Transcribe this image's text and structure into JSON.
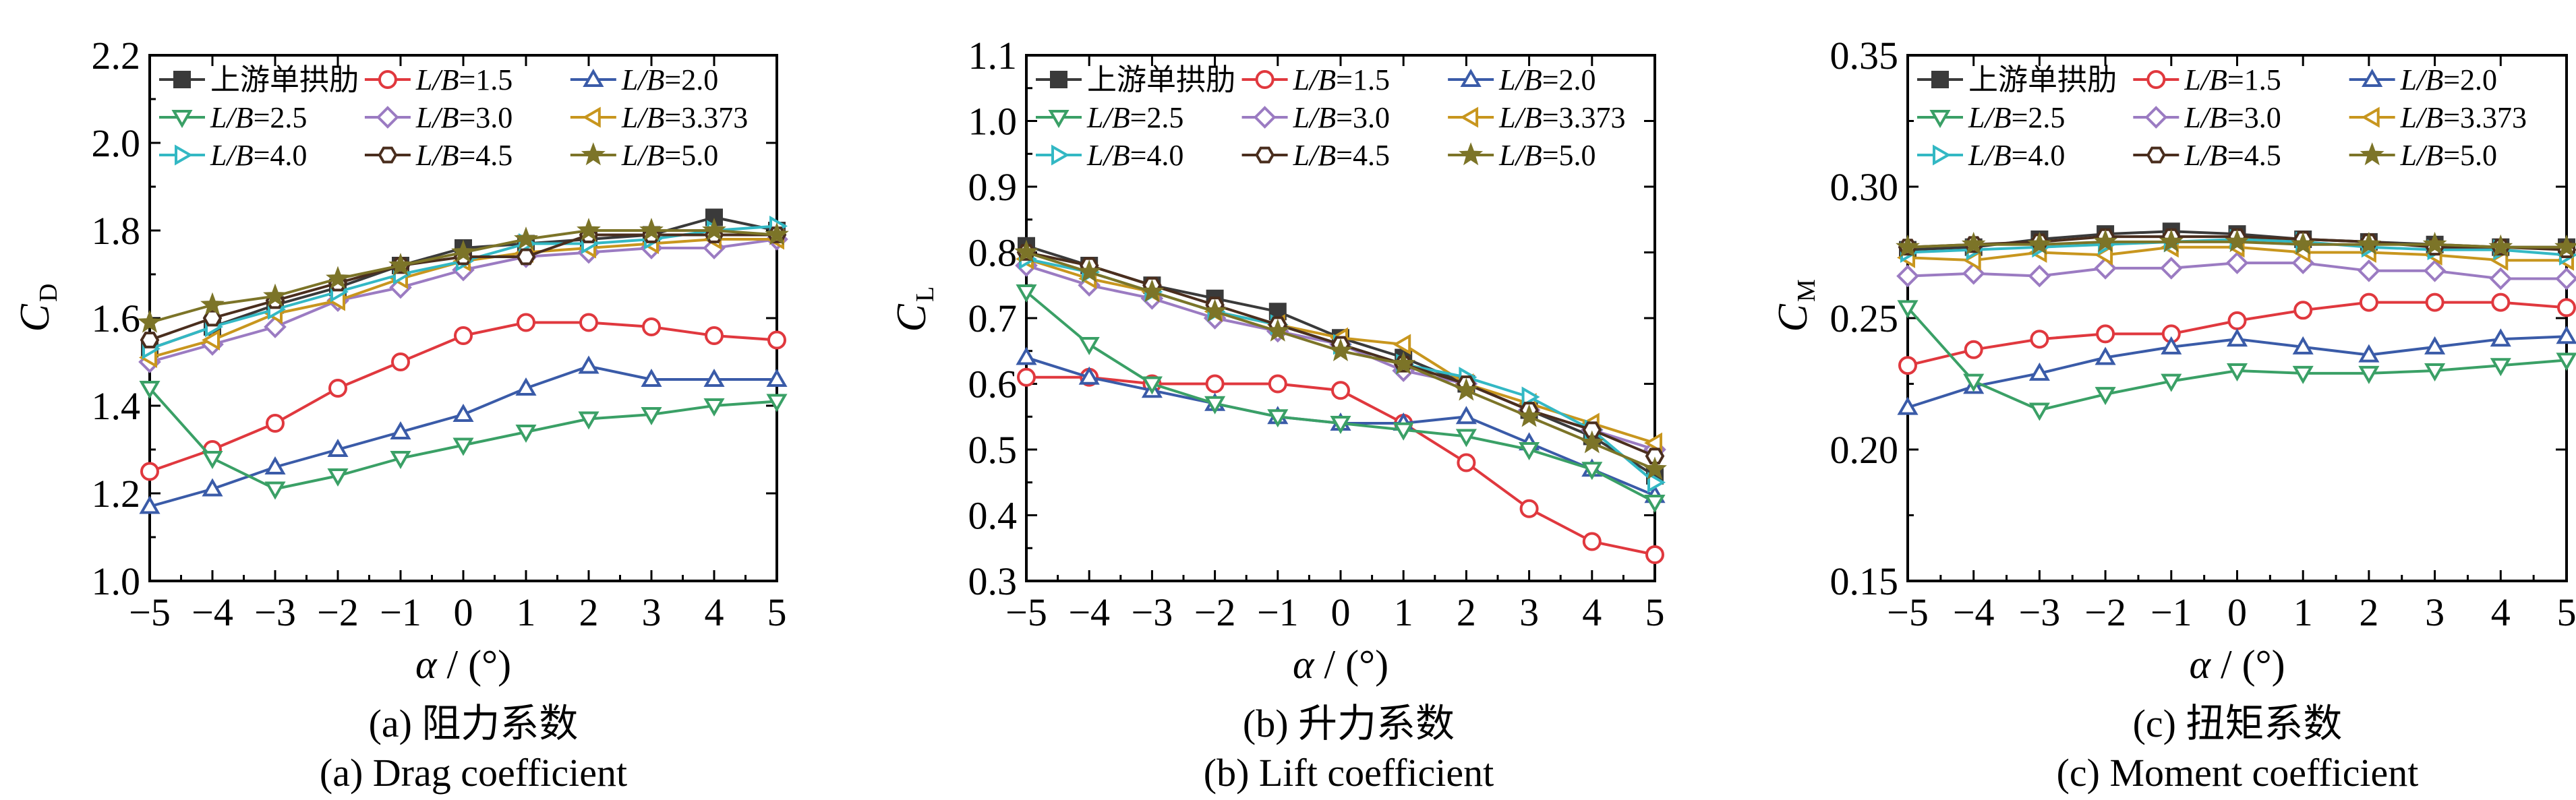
{
  "legend_labels": [
    "上游单拱肋",
    "L/B=1.5",
    "L/B=2.0",
    "L/B=2.5",
    "L/B=3.0",
    "L/B=3.373",
    "L/B=4.0",
    "L/B=4.5",
    "L/B=5.0"
  ],
  "series_style": [
    {
      "color": "#3a3a3a",
      "marker": "square-filled"
    },
    {
      "color": "#e0383e",
      "marker": "circle"
    },
    {
      "color": "#3a5ba8",
      "marker": "triangle-up"
    },
    {
      "color": "#3aa066",
      "marker": "triangle-down"
    },
    {
      "color": "#9b7bc2",
      "marker": "diamond"
    },
    {
      "color": "#c8961e",
      "marker": "triangle-left"
    },
    {
      "color": "#33b8c4",
      "marker": "triangle-right"
    },
    {
      "color": "#4a2e1e",
      "marker": "hexagon"
    },
    {
      "color": "#7c7428",
      "marker": "star"
    }
  ],
  "chart_data": [
    {
      "type": "line",
      "caption_cn": "(a)  阻力系数",
      "caption_en": "(a)  Drag coefficient",
      "xlabel": "α / (°)",
      "ylabel": "C",
      "ylabel_sub": "D",
      "xlim": [
        -5,
        5
      ],
      "ylim": [
        1.0,
        2.2
      ],
      "yticks": [
        "1.0",
        "1.2",
        "1.4",
        "1.6",
        "1.8",
        "2.0",
        "2.2"
      ],
      "x": [
        -5,
        -4,
        -3,
        -2,
        -1,
        0,
        1,
        2,
        3,
        4,
        5
      ],
      "series": [
        {
          "name": "上游单拱肋",
          "values": [
            1.53,
            1.58,
            1.63,
            1.67,
            1.72,
            1.76,
            1.77,
            1.78,
            1.79,
            1.83,
            1.8
          ]
        },
        {
          "name": "L/B=1.5",
          "values": [
            1.25,
            1.3,
            1.36,
            1.44,
            1.5,
            1.56,
            1.59,
            1.59,
            1.58,
            1.56,
            1.55
          ]
        },
        {
          "name": "L/B=2.0",
          "values": [
            1.17,
            1.21,
            1.26,
            1.3,
            1.34,
            1.38,
            1.44,
            1.49,
            1.46,
            1.46,
            1.46
          ]
        },
        {
          "name": "L/B=2.5",
          "values": [
            1.44,
            1.28,
            1.21,
            1.24,
            1.28,
            1.31,
            1.34,
            1.37,
            1.38,
            1.4,
            1.41
          ]
        },
        {
          "name": "L/B=3.0",
          "values": [
            1.5,
            1.54,
            1.58,
            1.64,
            1.67,
            1.71,
            1.74,
            1.75,
            1.76,
            1.76,
            1.78
          ]
        },
        {
          "name": "L/B=3.373",
          "values": [
            1.51,
            1.55,
            1.61,
            1.64,
            1.69,
            1.73,
            1.75,
            1.76,
            1.77,
            1.78,
            1.78
          ]
        },
        {
          "name": "L/B=4.0",
          "values": [
            1.53,
            1.58,
            1.62,
            1.66,
            1.7,
            1.73,
            1.77,
            1.77,
            1.78,
            1.8,
            1.81
          ]
        },
        {
          "name": "L/B=4.5",
          "values": [
            1.55,
            1.6,
            1.64,
            1.68,
            1.72,
            1.74,
            1.74,
            1.79,
            1.79,
            1.79,
            1.79
          ]
        },
        {
          "name": "L/B=5.0",
          "values": [
            1.59,
            1.63,
            1.65,
            1.69,
            1.72,
            1.75,
            1.78,
            1.8,
            1.8,
            1.8,
            1.79
          ]
        }
      ]
    },
    {
      "type": "line",
      "caption_cn": "(b)  升力系数",
      "caption_en": "(b)  Lift coefficient",
      "xlabel": "α / (°)",
      "ylabel": "C",
      "ylabel_sub": "L",
      "xlim": [
        -5,
        5
      ],
      "ylim": [
        0.3,
        1.1
      ],
      "yticks": [
        "0.3",
        "0.4",
        "0.5",
        "0.6",
        "0.7",
        "0.8",
        "0.9",
        "1.0",
        "1.1"
      ],
      "x": [
        -5,
        -4,
        -3,
        -2,
        -1,
        0,
        1,
        2,
        3,
        4,
        5
      ],
      "series": [
        {
          "name": "上游单拱肋",
          "values": [
            0.81,
            0.78,
            0.75,
            0.73,
            0.71,
            0.67,
            0.64,
            0.6,
            0.56,
            0.52,
            0.46
          ]
        },
        {
          "name": "L/B=1.5",
          "values": [
            0.61,
            0.61,
            0.6,
            0.6,
            0.6,
            0.59,
            0.54,
            0.48,
            0.41,
            0.36,
            0.34
          ]
        },
        {
          "name": "L/B=2.0",
          "values": [
            0.64,
            0.61,
            0.59,
            0.57,
            0.55,
            0.54,
            0.54,
            0.55,
            0.51,
            0.47,
            0.43
          ]
        },
        {
          "name": "L/B=2.5",
          "values": [
            0.74,
            0.66,
            0.6,
            0.57,
            0.55,
            0.54,
            0.53,
            0.52,
            0.5,
            0.47,
            0.42
          ]
        },
        {
          "name": "L/B=3.0",
          "values": [
            0.78,
            0.75,
            0.73,
            0.7,
            0.68,
            0.66,
            0.62,
            0.6,
            0.56,
            0.53,
            0.5
          ]
        },
        {
          "name": "L/B=3.373",
          "values": [
            0.79,
            0.76,
            0.74,
            0.71,
            0.69,
            0.67,
            0.66,
            0.6,
            0.57,
            0.54,
            0.51
          ]
        },
        {
          "name": "L/B=4.0",
          "values": [
            0.79,
            0.77,
            0.74,
            0.71,
            0.69,
            0.66,
            0.63,
            0.61,
            0.58,
            0.53,
            0.45
          ]
        },
        {
          "name": "L/B=4.5",
          "values": [
            0.8,
            0.78,
            0.75,
            0.72,
            0.69,
            0.66,
            0.63,
            0.6,
            0.56,
            0.53,
            0.49
          ]
        },
        {
          "name": "L/B=5.0",
          "values": [
            0.8,
            0.77,
            0.74,
            0.71,
            0.68,
            0.65,
            0.63,
            0.59,
            0.55,
            0.51,
            0.47
          ]
        }
      ]
    },
    {
      "type": "line",
      "caption_cn": "(c)  扭矩系数",
      "caption_en": "(c)  Moment coefficient",
      "xlabel": "α / (°)",
      "ylabel": "C",
      "ylabel_sub": "M",
      "xlim": [
        -5,
        5
      ],
      "ylim": [
        0.15,
        0.35
      ],
      "yticks": [
        "0.15",
        "0.20",
        "0.25",
        "0.30",
        "0.35"
      ],
      "x": [
        -5,
        -4,
        -3,
        -2,
        -1,
        0,
        1,
        2,
        3,
        4,
        5
      ],
      "series": [
        {
          "name": "上游单拱肋",
          "values": [
            0.276,
            0.277,
            0.28,
            0.282,
            0.283,
            0.282,
            0.28,
            0.279,
            0.278,
            0.277,
            0.277
          ]
        },
        {
          "name": "L/B=1.5",
          "values": [
            0.232,
            0.238,
            0.242,
            0.244,
            0.244,
            0.249,
            0.253,
            0.256,
            0.256,
            0.256,
            0.254
          ]
        },
        {
          "name": "L/B=2.0",
          "values": [
            0.216,
            0.224,
            0.229,
            0.235,
            0.239,
            0.242,
            0.239,
            0.236,
            0.239,
            0.242,
            0.243
          ]
        },
        {
          "name": "L/B=2.5",
          "values": [
            0.254,
            0.226,
            0.215,
            0.221,
            0.226,
            0.23,
            0.229,
            0.229,
            0.23,
            0.232,
            0.234
          ]
        },
        {
          "name": "L/B=3.0",
          "values": [
            0.266,
            0.267,
            0.266,
            0.269,
            0.269,
            0.271,
            0.271,
            0.268,
            0.268,
            0.265,
            0.265
          ]
        },
        {
          "name": "L/B=3.373",
          "values": [
            0.273,
            0.272,
            0.275,
            0.274,
            0.277,
            0.277,
            0.275,
            0.275,
            0.274,
            0.272,
            0.272
          ]
        },
        {
          "name": "L/B=4.0",
          "values": [
            0.275,
            0.276,
            0.277,
            0.278,
            0.279,
            0.28,
            0.279,
            0.277,
            0.276,
            0.276,
            0.274
          ]
        },
        {
          "name": "L/B=4.5",
          "values": [
            0.277,
            0.278,
            0.279,
            0.281,
            0.281,
            0.281,
            0.28,
            0.279,
            0.277,
            0.277,
            0.276
          ]
        },
        {
          "name": "L/B=5.0",
          "values": [
            0.277,
            0.278,
            0.278,
            0.279,
            0.279,
            0.279,
            0.278,
            0.278,
            0.278,
            0.277,
            0.277
          ]
        }
      ]
    }
  ]
}
